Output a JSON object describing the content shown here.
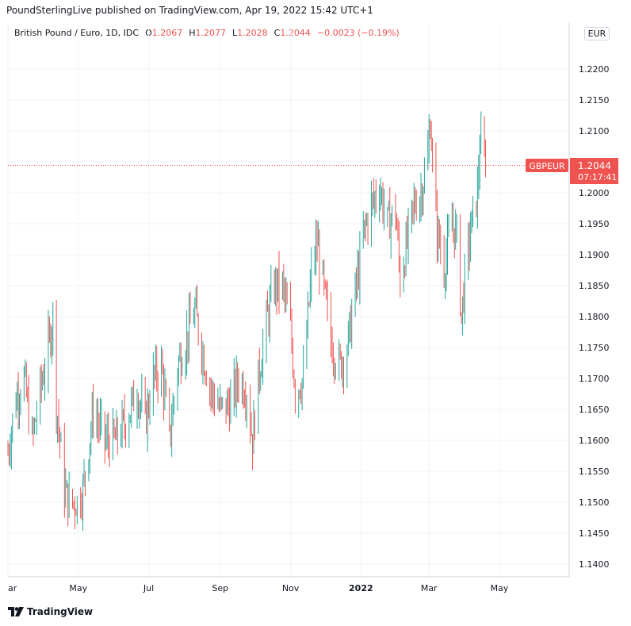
{
  "header": {
    "publisher": "PoundSterlingLive published on TradingView.com, Apr 19, 2022 15:42 UTC+1"
  },
  "legend": {
    "symbol": "British Pound / Euro, 1D, IDC",
    "open_label": "O",
    "open": "1.2067",
    "high_label": "H",
    "high": "1.2077",
    "low_label": "L",
    "low": "1.2028",
    "close_label": "C",
    "close": "1.2044",
    "change": "−0.0023 (−0.19%)"
  },
  "currency": "EUR",
  "price_tag": {
    "symbol": "GBPEUR",
    "price": "1.2044",
    "countdown": "07:17:41"
  },
  "footer": {
    "brand": "TradingView",
    "logo_icon": "tradingview-logo-icon"
  },
  "colors": {
    "up": "#26a69a",
    "down": "#ef5350",
    "grid": "#f0f3fa",
    "axis_text": "#131722"
  },
  "chart_data": {
    "type": "ohlc-bar",
    "symbol": "GBPEUR",
    "timeframe": "1D",
    "ylim": [
      1.137,
      1.226
    ],
    "y_ticks": [
      "1.2200",
      "1.2150",
      "1.2100",
      "1.2050",
      "1.2000",
      "1.1950",
      "1.1900",
      "1.1850",
      "1.1800",
      "1.1750",
      "1.1700",
      "1.1650",
      "1.1600",
      "1.1550",
      "1.1500",
      "1.1450",
      "1.1400"
    ],
    "x_ticks": [
      {
        "label": "ar",
        "date": "2021-03-01",
        "bold": false
      },
      {
        "label": "May",
        "date": "2021-05-01",
        "bold": false
      },
      {
        "label": "Jul",
        "date": "2021-07-01",
        "bold": false
      },
      {
        "label": "Sep",
        "date": "2021-09-01",
        "bold": false
      },
      {
        "label": "Nov",
        "date": "2021-11-01",
        "bold": false
      },
      {
        "label": "2022",
        "date": "2022-01-01",
        "bold": true
      },
      {
        "label": "Mar",
        "date": "2022-03-01",
        "bold": false
      },
      {
        "label": "May",
        "date": "2022-05-01",
        "bold": false
      }
    ],
    "grid": true,
    "last_price": 1.2044,
    "anchors": [
      {
        "date": "2021-03-01",
        "price": 1.158
      },
      {
        "date": "2021-03-08",
        "price": 1.167
      },
      {
        "date": "2021-03-15",
        "price": 1.17
      },
      {
        "date": "2021-03-22",
        "price": 1.16
      },
      {
        "date": "2021-03-29",
        "price": 1.168
      },
      {
        "date": "2021-04-05",
        "price": 1.175
      },
      {
        "date": "2021-04-09",
        "price": 1.18
      },
      {
        "date": "2021-04-12",
        "price": 1.166
      },
      {
        "date": "2021-04-19",
        "price": 1.152
      },
      {
        "date": "2021-04-23",
        "price": 1.15
      },
      {
        "date": "2021-04-30",
        "price": 1.15
      },
      {
        "date": "2021-05-05",
        "price": 1.152
      },
      {
        "date": "2021-05-14",
        "price": 1.165
      },
      {
        "date": "2021-05-24",
        "price": 1.16
      },
      {
        "date": "2021-06-02",
        "price": 1.16
      },
      {
        "date": "2021-06-11",
        "price": 1.163
      },
      {
        "date": "2021-06-21",
        "price": 1.168
      },
      {
        "date": "2021-06-28",
        "price": 1.163
      },
      {
        "date": "2021-07-05",
        "price": 1.17
      },
      {
        "date": "2021-07-12",
        "price": 1.172
      },
      {
        "date": "2021-07-19",
        "price": 1.16
      },
      {
        "date": "2021-07-26",
        "price": 1.172
      },
      {
        "date": "2021-08-02",
        "price": 1.176
      },
      {
        "date": "2021-08-10",
        "price": 1.181
      },
      {
        "date": "2021-08-17",
        "price": 1.174
      },
      {
        "date": "2021-08-24",
        "price": 1.168
      },
      {
        "date": "2021-09-01",
        "price": 1.165
      },
      {
        "date": "2021-09-10",
        "price": 1.166
      },
      {
        "date": "2021-09-17",
        "price": 1.17
      },
      {
        "date": "2021-09-24",
        "price": 1.168
      },
      {
        "date": "2021-09-29",
        "price": 1.16
      },
      {
        "date": "2021-10-04",
        "price": 1.17
      },
      {
        "date": "2021-10-11",
        "price": 1.179
      },
      {
        "date": "2021-10-18",
        "price": 1.185
      },
      {
        "date": "2021-10-25",
        "price": 1.185
      },
      {
        "date": "2021-11-01",
        "price": 1.178
      },
      {
        "date": "2021-11-05",
        "price": 1.168
      },
      {
        "date": "2021-11-12",
        "price": 1.17
      },
      {
        "date": "2021-11-19",
        "price": 1.187
      },
      {
        "date": "2021-11-24",
        "price": 1.192
      },
      {
        "date": "2021-11-30",
        "price": 1.184
      },
      {
        "date": "2021-12-06",
        "price": 1.176
      },
      {
        "date": "2021-12-13",
        "price": 1.172
      },
      {
        "date": "2021-12-20",
        "price": 1.175
      },
      {
        "date": "2021-12-27",
        "price": 1.184
      },
      {
        "date": "2022-01-04",
        "price": 1.194
      },
      {
        "date": "2022-01-10",
        "price": 1.198
      },
      {
        "date": "2022-01-17",
        "price": 1.201
      },
      {
        "date": "2022-01-24",
        "price": 1.195
      },
      {
        "date": "2022-01-31",
        "price": 1.197
      },
      {
        "date": "2022-02-04",
        "price": 1.186
      },
      {
        "date": "2022-02-10",
        "price": 1.192
      },
      {
        "date": "2022-02-16",
        "price": 1.198
      },
      {
        "date": "2022-02-22",
        "price": 1.2
      },
      {
        "date": "2022-02-28",
        "price": 1.206
      },
      {
        "date": "2022-03-02",
        "price": 1.212
      },
      {
        "date": "2022-03-07",
        "price": 1.195
      },
      {
        "date": "2022-03-14",
        "price": 1.188
      },
      {
        "date": "2022-03-21",
        "price": 1.195
      },
      {
        "date": "2022-03-25",
        "price": 1.193
      },
      {
        "date": "2022-03-29",
        "price": 1.18
      },
      {
        "date": "2022-04-01",
        "price": 1.186
      },
      {
        "date": "2022-04-06",
        "price": 1.194
      },
      {
        "date": "2022-04-12",
        "price": 1.2
      },
      {
        "date": "2022-04-14",
        "price": 1.208
      },
      {
        "date": "2022-04-19",
        "price": 1.2044
      }
    ]
  }
}
